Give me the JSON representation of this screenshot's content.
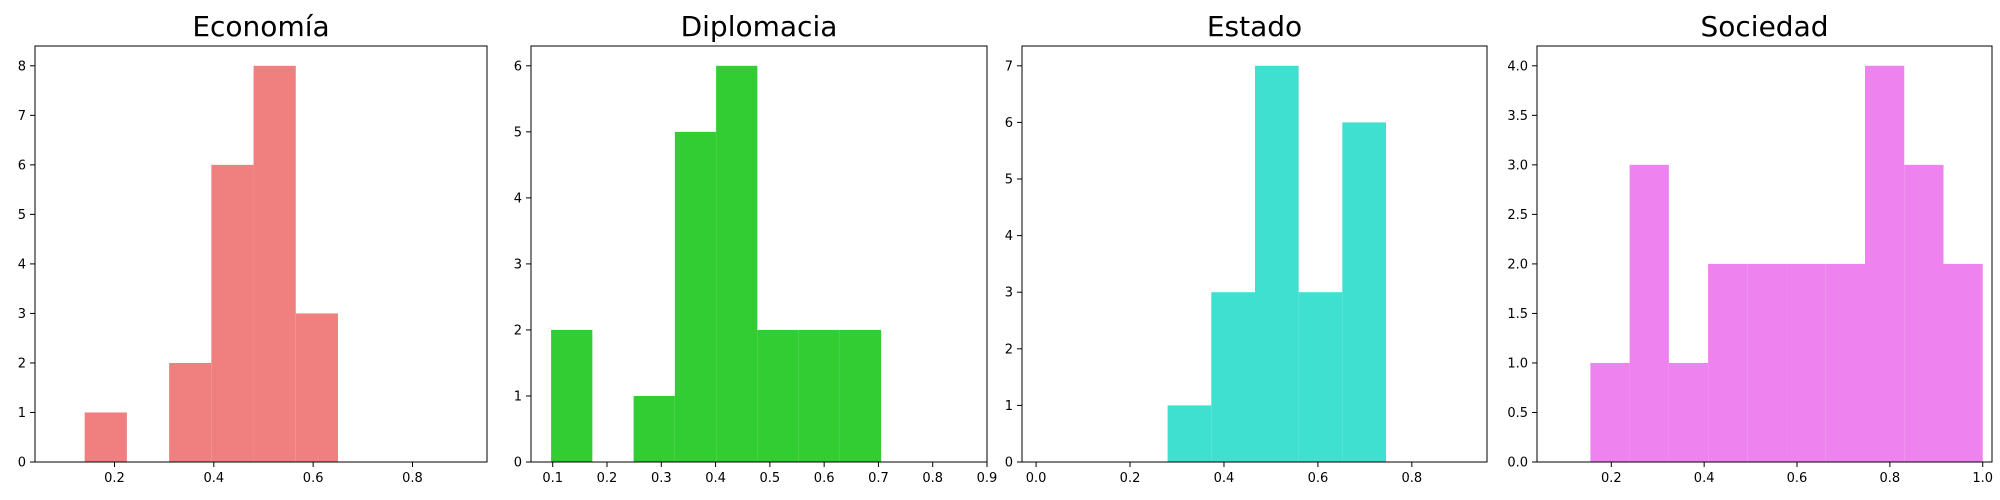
{
  "chart_data": [
    {
      "type": "bar",
      "title": "Economía",
      "color": "#F08080",
      "xlim": [
        0.04,
        0.95
      ],
      "ylim": [
        0,
        8.4
      ],
      "xticks": [
        0.2,
        0.4,
        0.6,
        0.8
      ],
      "xtick_labels": [
        "0.2",
        "0.4",
        "0.6",
        "0.8"
      ],
      "yticks": [
        0,
        1,
        2,
        3,
        4,
        5,
        6,
        7,
        8
      ],
      "ytick_labels": [
        "0",
        "1",
        "2",
        "3",
        "4",
        "5",
        "6",
        "7",
        "8"
      ],
      "bins": [
        {
          "x0": 0.14,
          "x1": 0.225,
          "count": 1
        },
        {
          "x0": 0.225,
          "x1": 0.31,
          "count": 0
        },
        {
          "x0": 0.31,
          "x1": 0.395,
          "count": 2
        },
        {
          "x0": 0.395,
          "x1": 0.48,
          "count": 6
        },
        {
          "x0": 0.48,
          "x1": 0.565,
          "count": 8
        },
        {
          "x0": 0.565,
          "x1": 0.65,
          "count": 3
        }
      ]
    },
    {
      "type": "bar",
      "title": "Diplomacia",
      "color": "#32CD32",
      "xlim": [
        0.06,
        0.9
      ],
      "ylim": [
        0,
        6.3
      ],
      "xticks": [
        0.1,
        0.2,
        0.3,
        0.4,
        0.5,
        0.6,
        0.7,
        0.8,
        0.9
      ],
      "xtick_labels": [
        "0.1",
        "0.2",
        "0.3",
        "0.4",
        "0.5",
        "0.6",
        "0.7",
        "0.8",
        "0.9"
      ],
      "yticks": [
        0,
        1,
        2,
        3,
        4,
        5,
        6
      ],
      "ytick_labels": [
        "0",
        "1",
        "2",
        "3",
        "4",
        "5",
        "6"
      ],
      "bins": [
        {
          "x0": 0.097,
          "x1": 0.173,
          "count": 2
        },
        {
          "x0": 0.173,
          "x1": 0.249,
          "count": 0
        },
        {
          "x0": 0.249,
          "x1": 0.325,
          "count": 1
        },
        {
          "x0": 0.325,
          "x1": 0.401,
          "count": 5
        },
        {
          "x0": 0.401,
          "x1": 0.477,
          "count": 6
        },
        {
          "x0": 0.477,
          "x1": 0.553,
          "count": 2
        },
        {
          "x0": 0.553,
          "x1": 0.629,
          "count": 2
        },
        {
          "x0": 0.629,
          "x1": 0.705,
          "count": 2
        }
      ]
    },
    {
      "type": "bar",
      "title": "Estado",
      "color": "#40E0D0",
      "xlim": [
        -0.03,
        0.96
      ],
      "ylim": [
        0,
        7.35
      ],
      "xticks": [
        0.0,
        0.2,
        0.4,
        0.6,
        0.8
      ],
      "xtick_labels": [
        "0.0",
        "0.2",
        "0.4",
        "0.6",
        "0.8"
      ],
      "yticks": [
        0,
        1,
        2,
        3,
        4,
        5,
        6,
        7
      ],
      "ytick_labels": [
        "0",
        "1",
        "2",
        "3",
        "4",
        "5",
        "6",
        "7"
      ],
      "bins": [
        {
          "x0": 0.28,
          "x1": 0.373,
          "count": 1
        },
        {
          "x0": 0.373,
          "x1": 0.466,
          "count": 3
        },
        {
          "x0": 0.466,
          "x1": 0.559,
          "count": 7
        },
        {
          "x0": 0.559,
          "x1": 0.652,
          "count": 3
        },
        {
          "x0": 0.652,
          "x1": 0.745,
          "count": 6
        }
      ]
    },
    {
      "type": "bar",
      "title": "Sociedad",
      "color": "#EE82EE",
      "xlim": [
        0.04,
        1.02
      ],
      "ylim": [
        0,
        4.2
      ],
      "xticks": [
        0.2,
        0.4,
        0.6,
        0.8,
        1.0
      ],
      "xtick_labels": [
        "0.2",
        "0.4",
        "0.6",
        "0.8",
        "1.0"
      ],
      "yticks": [
        0,
        0.5,
        1.0,
        1.5,
        2.0,
        2.5,
        3.0,
        3.5,
        4.0
      ],
      "ytick_labels": [
        "0.0",
        "0.5",
        "1.0",
        "1.5",
        "2.0",
        "2.5",
        "3.0",
        "3.5",
        "4.0"
      ],
      "bins": [
        {
          "x0": 0.155,
          "x1": 0.2395,
          "count": 1
        },
        {
          "x0": 0.2395,
          "x1": 0.324,
          "count": 3
        },
        {
          "x0": 0.324,
          "x1": 0.4085,
          "count": 1
        },
        {
          "x0": 0.4085,
          "x1": 0.493,
          "count": 2
        },
        {
          "x0": 0.493,
          "x1": 0.5775,
          "count": 2
        },
        {
          "x0": 0.5775,
          "x1": 0.662,
          "count": 2
        },
        {
          "x0": 0.662,
          "x1": 0.7465,
          "count": 2
        },
        {
          "x0": 0.7465,
          "x1": 0.831,
          "count": 4
        },
        {
          "x0": 0.831,
          "x1": 0.9155,
          "count": 3
        },
        {
          "x0": 0.9155,
          "x1": 1.0,
          "count": 2
        }
      ]
    }
  ]
}
